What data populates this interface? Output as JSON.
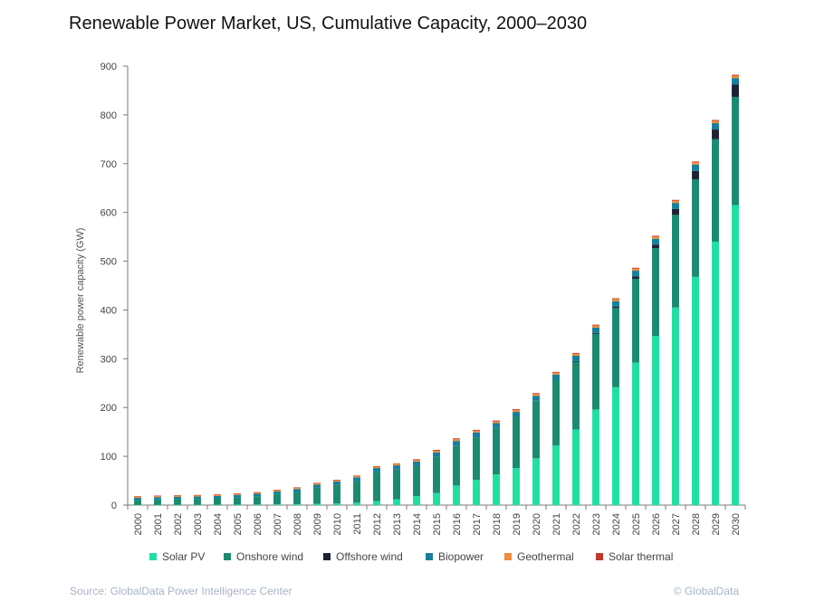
{
  "chart_data": {
    "type": "bar",
    "stacked": true,
    "title": "Renewable Power Market, US, Cumulative Capacity, 2000–2030",
    "xlabel": "",
    "ylabel": "Renewable power capacity (GW)",
    "ylim": [
      0,
      900
    ],
    "yticks": [
      "0",
      "100",
      "200",
      "300",
      "400",
      "500",
      "600",
      "700",
      "800",
      "900"
    ],
    "grid": false,
    "legend_position": "bottom",
    "categories": [
      "2000",
      "2001",
      "2002",
      "2003",
      "2004",
      "2005",
      "2006",
      "2007",
      "2008",
      "2009",
      "2010",
      "2011",
      "2012",
      "2013",
      "2014",
      "2015",
      "2016",
      "2017",
      "2018",
      "2019",
      "2020",
      "2021",
      "2022",
      "2023",
      "2024",
      "2025",
      "2026",
      "2027",
      "2028",
      "2029",
      "2030"
    ],
    "series": [
      {
        "name": "Solar PV",
        "color": "#1ee0a0",
        "values": [
          0.5,
          0.6,
          0.7,
          0.8,
          0.9,
          1,
          1.2,
          1.5,
          2,
          2.5,
          3.5,
          5,
          8,
          12,
          18,
          25,
          40,
          52,
          63,
          76,
          96,
          122,
          155,
          196,
          242,
          292,
          347,
          405,
          468,
          540,
          615
        ]
      },
      {
        "name": "Onshore wind",
        "color": "#1a8a70",
        "values": [
          10,
          11,
          11.5,
          12,
          13,
          15,
          17,
          21,
          25,
          33,
          38,
          44,
          60,
          61,
          62,
          74,
          82,
          87,
          95,
          105,
          118,
          135,
          140,
          155,
          162,
          172,
          180,
          190,
          200,
          210,
          222
        ]
      },
      {
        "name": "Offshore wind",
        "color": "#1e2235",
        "values": [
          0,
          0,
          0,
          0,
          0,
          0,
          0,
          0,
          0,
          0,
          0,
          0,
          0,
          0,
          0,
          0,
          0,
          0,
          0,
          0,
          0,
          0,
          0.1,
          2,
          3,
          5,
          7,
          12,
          17,
          20,
          25
        ]
      },
      {
        "name": "Biopower",
        "color": "#157f9c",
        "values": [
          4.5,
          4.6,
          4.7,
          4.7,
          4.8,
          4.8,
          5,
          5.5,
          6,
          6.5,
          7,
          8,
          8,
          8.5,
          9,
          9,
          9.5,
          10,
          10,
          10,
          10,
          10.5,
          11,
          11,
          11,
          11.5,
          12,
          12.5,
          13,
          13,
          13.5
        ]
      },
      {
        "name": "Geothermal",
        "color": "#f08a3c",
        "values": [
          2.8,
          2.8,
          2.8,
          2.9,
          2.9,
          2.9,
          2.9,
          3,
          3,
          3.1,
          3.1,
          3.2,
          3.3,
          3.4,
          3.4,
          3.5,
          3.6,
          3.6,
          3.7,
          3.8,
          3.9,
          4,
          4.1,
          4.2,
          4.3,
          4.4,
          4.5,
          4.6,
          4.7,
          4.8,
          5
        ]
      },
      {
        "name": "Solar thermal",
        "color": "#c0392b",
        "values": [
          0.4,
          0.4,
          0.4,
          0.4,
          0.4,
          0.4,
          0.4,
          0.4,
          0.4,
          0.4,
          0.4,
          0.4,
          0.5,
          0.8,
          1.6,
          1.7,
          1.7,
          1.7,
          1.7,
          1.7,
          1.7,
          1.7,
          1.7,
          1.7,
          1.7,
          1.7,
          1.7,
          1.7,
          1.7,
          1.7,
          1.7
        ]
      }
    ]
  },
  "source_note": "Source: GlobalData Power Intelligence Center",
  "copyright_note": "© GlobalData"
}
